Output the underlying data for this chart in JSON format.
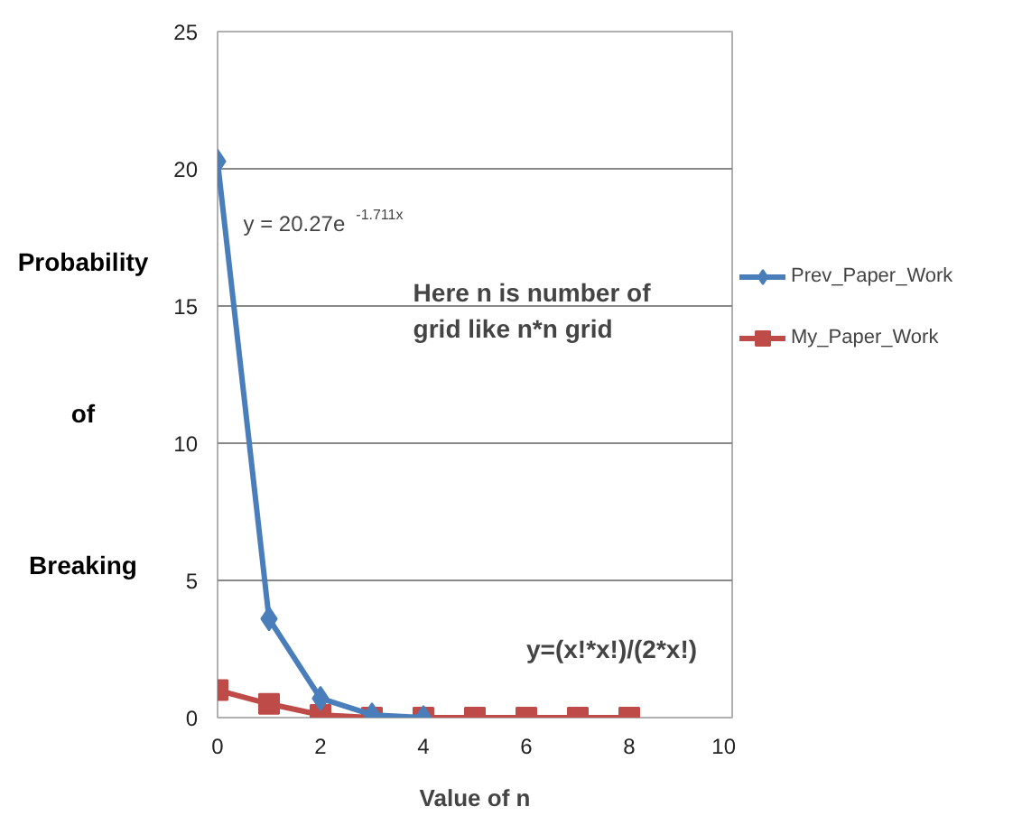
{
  "chart_data": {
    "type": "line",
    "xlabel": "Value of n",
    "ylabel": "Probability of Breaking",
    "x": [
      0,
      1,
      2,
      3,
      4,
      5,
      6,
      7,
      8
    ],
    "series": [
      {
        "name": "Prev_Paper_Work",
        "color": "#4a7ebb",
        "marker": "diamond",
        "x": [
          0,
          1,
          2,
          3,
          4
        ],
        "values": [
          20.27,
          3.6,
          0.7,
          0.1,
          0.0
        ]
      },
      {
        "name": "My_Paper_Work",
        "color": "#be4b48",
        "marker": "square",
        "values": [
          1.0,
          0.5,
          0.1,
          0,
          0,
          0,
          0,
          0,
          0
        ]
      }
    ],
    "xlim": [
      0,
      10
    ],
    "xticks": [
      0,
      2,
      4,
      6,
      8,
      10
    ],
    "ylim": [
      0,
      25
    ],
    "yticks": [
      0,
      5,
      10,
      15,
      20,
      25
    ],
    "grid": "y",
    "legend": "right",
    "line_style": "solid",
    "annotations": [
      "y = 20.27e$^{-1.711x}$",
      "Here n is number of grid like n*n grid",
      "y=(x!*x!)/(2*x!)"
    ]
  }
}
